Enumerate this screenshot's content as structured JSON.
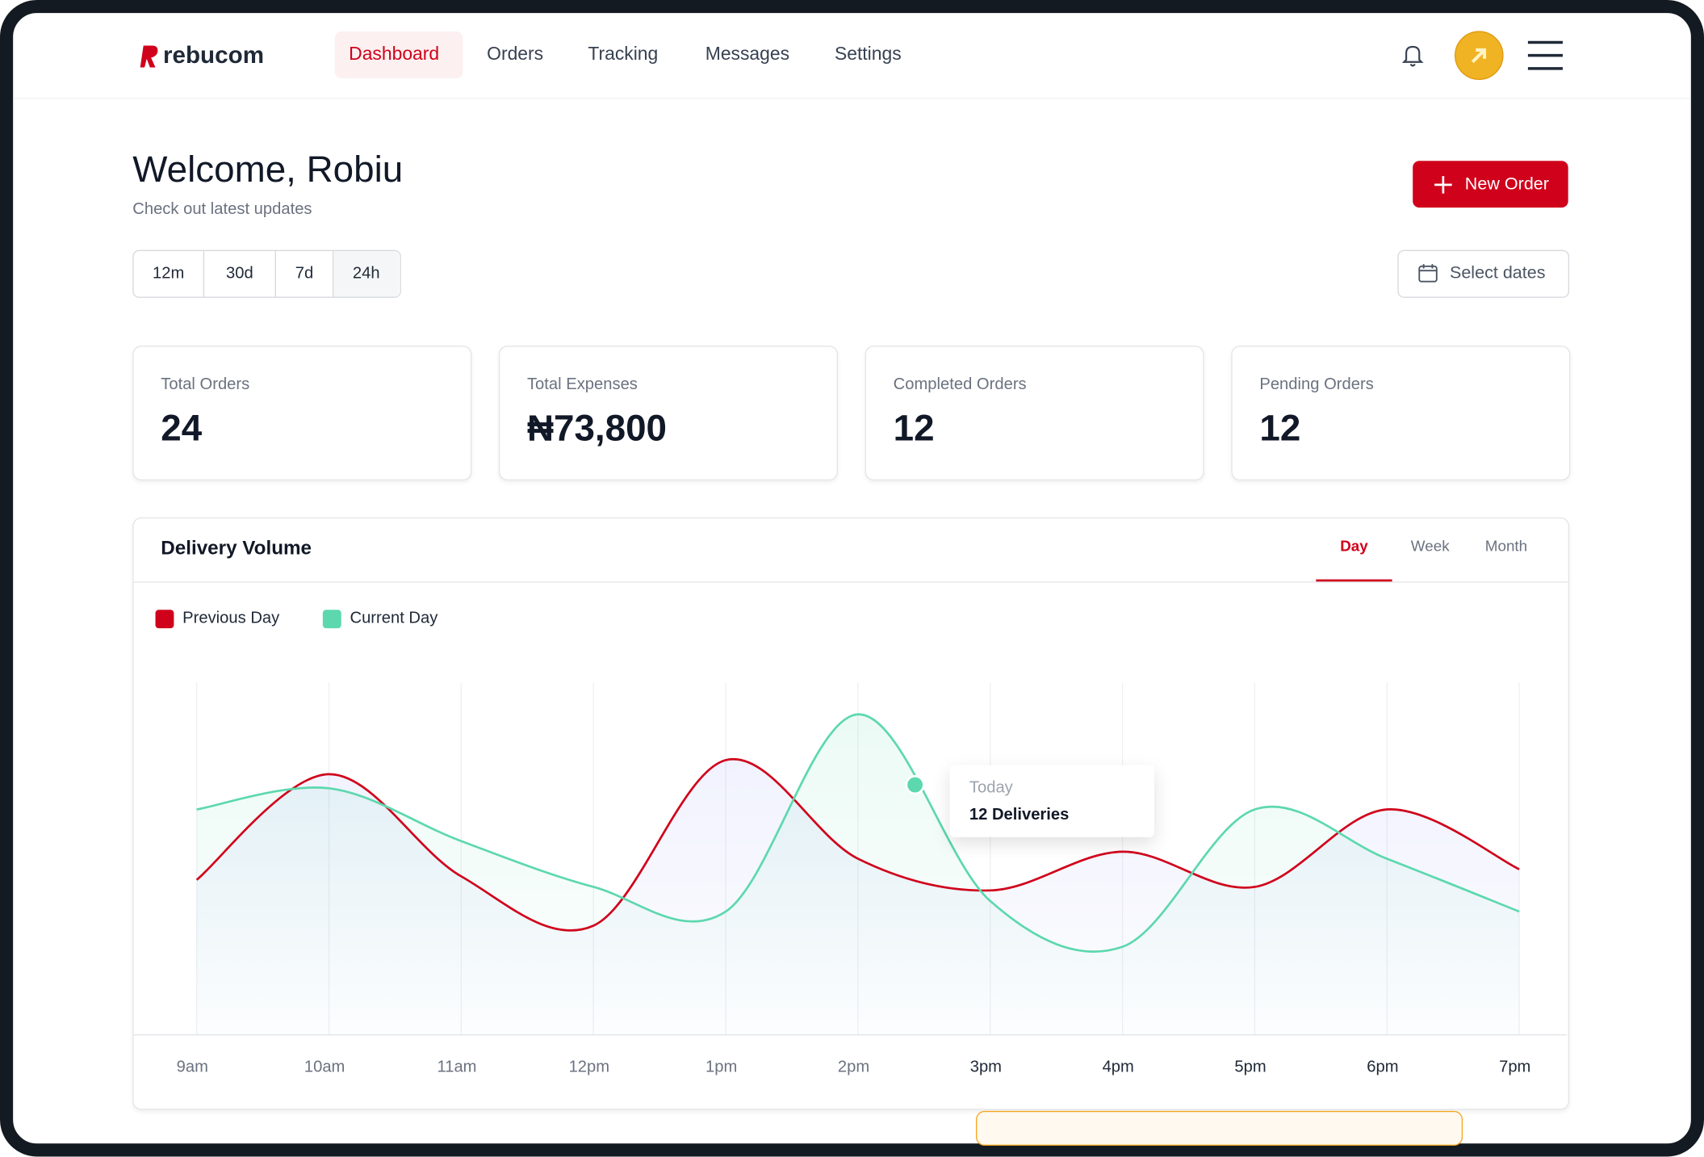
{
  "header": {
    "brand": "rebucom",
    "nav": [
      "Dashboard",
      "Orders",
      "Tracking",
      "Messages",
      "Settings"
    ]
  },
  "welcome": {
    "title": "Welcome, Robiu",
    "subtitle": "Check out latest updates",
    "button": "New Order"
  },
  "filters": [
    "12m",
    "30d",
    "7d",
    "24h"
  ],
  "date_button": "Select dates",
  "stats": [
    {
      "label": "Total Orders",
      "value": "24"
    },
    {
      "label": "Total Expenses",
      "value": "₦73,800"
    },
    {
      "label": "Completed Orders",
      "value": "12"
    },
    {
      "label": "Pending Orders",
      "value": "12"
    }
  ],
  "chart_tabs": [
    "Day",
    "Week",
    "Month"
  ],
  "chart_data": {
    "type": "line",
    "title": "Delivery Volume",
    "categories": [
      "9am",
      "10am",
      "11am",
      "12pm",
      "1pm",
      "2pm",
      "3pm",
      "4pm",
      "5pm",
      "6pm",
      "7pm"
    ],
    "series": [
      {
        "name": "Previous Day",
        "color": "#d0021b",
        "values": [
          44,
          74,
          45,
          31,
          78,
          50,
          41,
          52,
          42,
          64,
          47
        ]
      },
      {
        "name": "Current Day",
        "color": "#5dd8ae",
        "values": [
          64,
          70,
          55,
          42,
          35,
          91,
          38,
          25,
          64,
          50,
          35
        ]
      }
    ],
    "ylim": [
      0,
      100
    ],
    "annotations": [
      "Today",
      "12 Deliveries"
    ]
  }
}
